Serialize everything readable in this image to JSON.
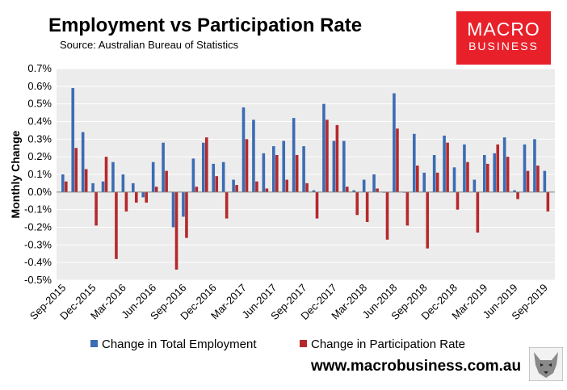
{
  "header": {
    "title": "Employment vs Participation Rate",
    "subtitle": "Source: Australian Bureau of Statistics"
  },
  "logo": {
    "line1": "MACRO",
    "line2": "BUSINESS"
  },
  "footer": {
    "website": "www.macrobusiness.com.au"
  },
  "colors": {
    "employment": "#3c6cb4",
    "participation": "#b5292c",
    "plot_bg": "#ececec",
    "logo_bg": "#e8202a"
  },
  "chart_data": {
    "type": "bar",
    "ylabel": "Monthly Change",
    "ylim": [
      -0.5,
      0.7
    ],
    "yticks": [
      "-0.5%",
      "-0.4%",
      "-0.3%",
      "-0.2%",
      "-0.1%",
      "0.0%",
      "0.1%",
      "0.2%",
      "0.3%",
      "0.4%",
      "0.5%",
      "0.6%",
      "0.7%"
    ],
    "x_labels": [
      "Sep-2015",
      "Dec-2015",
      "Mar-2016",
      "Jun-2016",
      "Sep-2016",
      "Dec-2016",
      "Mar-2017",
      "Jun-2017",
      "Sep-2017",
      "Dec-2017",
      "Mar-2018",
      "Jun-2018",
      "Sep-2018",
      "Dec-2018",
      "Mar-2019",
      "Jun-2019",
      "Sep-2019"
    ],
    "legend_position": "bottom",
    "series": [
      {
        "name": "Change in Total Employment",
        "values": [
          0.1,
          0.59,
          0.34,
          0.05,
          0.06,
          0.17,
          0.1,
          0.05,
          -0.03,
          0.17,
          0.28,
          -0.2,
          -0.14,
          0.19,
          0.28,
          0.16,
          0.17,
          0.07,
          0.48,
          0.41,
          0.22,
          0.26,
          0.29,
          0.42,
          0.26,
          0.01,
          0.5,
          0.29,
          0.29,
          0.01,
          0.07,
          0.1,
          0.0,
          0.56,
          0.0,
          0.33,
          0.11,
          0.21,
          0.32,
          0.14,
          0.27,
          0.07,
          0.21,
          0.22,
          0.31,
          0.01,
          0.27,
          0.3,
          0.12
        ]
      },
      {
        "name": "Change in Participation Rate",
        "values": [
          0.06,
          0.25,
          0.13,
          -0.19,
          0.2,
          -0.38,
          -0.11,
          -0.06,
          -0.06,
          0.03,
          0.12,
          -0.44,
          -0.26,
          0.03,
          0.31,
          0.09,
          -0.15,
          0.04,
          0.3,
          0.06,
          0.02,
          0.21,
          0.07,
          0.21,
          0.05,
          -0.15,
          0.41,
          0.38,
          0.03,
          -0.13,
          -0.17,
          0.02,
          -0.27,
          0.36,
          -0.19,
          0.15,
          -0.32,
          0.11,
          0.28,
          -0.1,
          0.17,
          -0.23,
          0.16,
          0.27,
          0.2,
          -0.04,
          0.12,
          0.15,
          -0.11
        ]
      }
    ]
  }
}
